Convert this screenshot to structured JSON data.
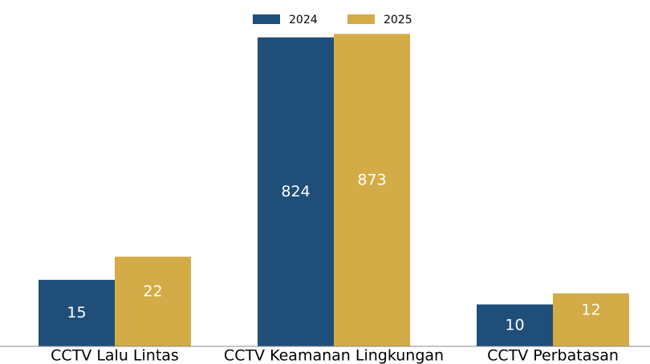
{
  "chart_data": {
    "type": "bar",
    "categories": [
      "CCTV Lalu Lintas",
      "CCTV Keamanan Lingkungan",
      "CCTV Perbatasan"
    ],
    "series": [
      {
        "name": "2024",
        "color": "#1f4e79",
        "values": [
          15,
          824,
          10
        ]
      },
      {
        "name": "2025",
        "color": "#d4ac47",
        "values": [
          22,
          873,
          12
        ]
      }
    ],
    "ylim": [
      5,
      1000
    ],
    "log_scale": true,
    "legend": "top"
  }
}
